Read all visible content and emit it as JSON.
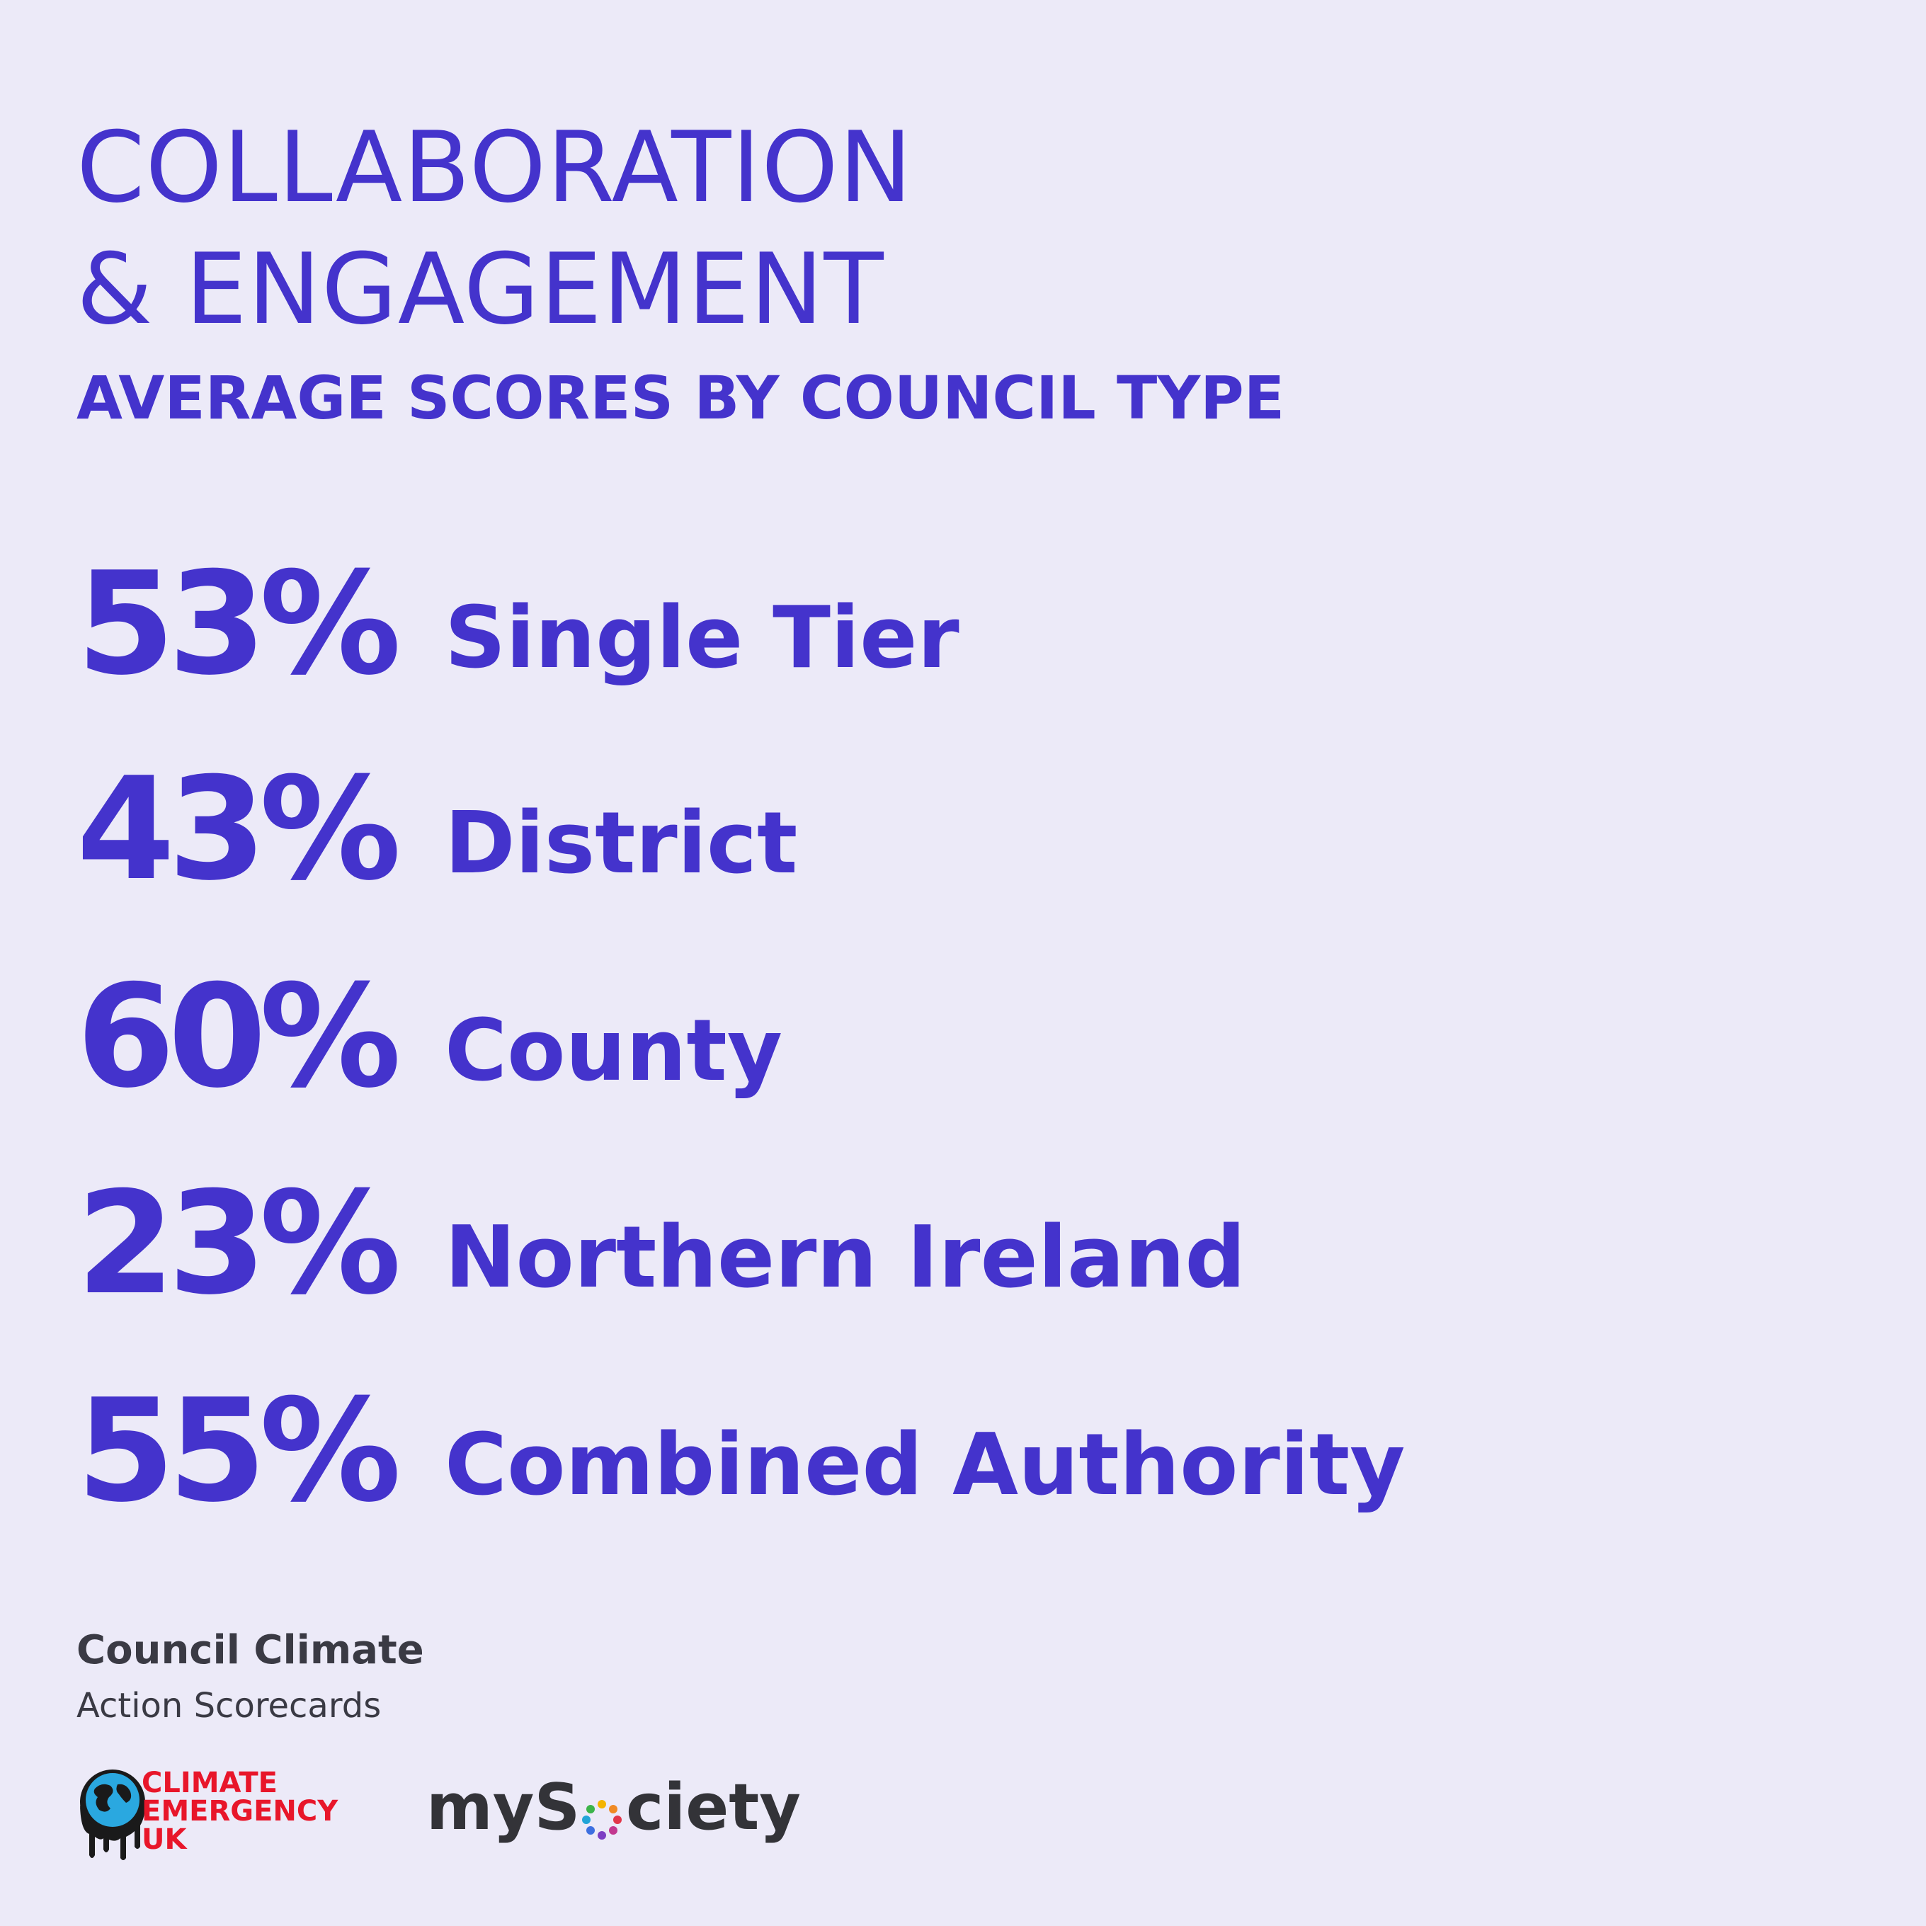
{
  "header": {
    "title_line1": "COLLABORATION",
    "title_line2": "& ENGAGEMENT",
    "subtitle": "AVERAGE SCORES BY COUNCIL TYPE"
  },
  "scores": [
    {
      "value": "53%",
      "label": "Single Tier"
    },
    {
      "value": "43%",
      "label": "District"
    },
    {
      "value": "60%",
      "label": "County"
    },
    {
      "value": "23%",
      "label": "Northern Ireland"
    },
    {
      "value": "55%",
      "label": "Combined Authority"
    }
  ],
  "footer": {
    "brand_line1": "Council Climate",
    "brand_line2": "Action Scorecards",
    "ceuk_logo": {
      "line1": "CLIMATE",
      "line2": "EMERGENCY",
      "line3": "UK",
      "color": "#e8162a"
    },
    "mysociety_logo": {
      "part1": "myS",
      "part2": "ciety"
    }
  },
  "colors": {
    "background": "#eceaf8",
    "accent": "#4433cc",
    "footer_text": "#3a3a44"
  }
}
